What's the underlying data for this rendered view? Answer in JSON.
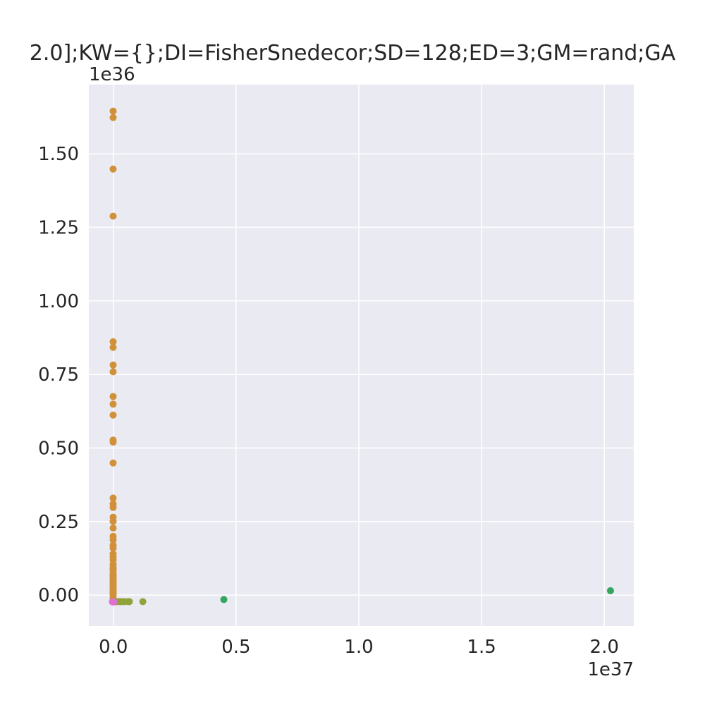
{
  "chart_data": {
    "type": "scatter",
    "title": "2.0];KW={};DI=FisherSnedecor;SD=128;ED=3;GM=rand;GA",
    "xlabel": "",
    "ylabel": "",
    "x_offset_label": "1e37",
    "y_offset_label": "1e36",
    "x_scale": 1e+37,
    "y_scale": 1e+36,
    "xlim": [
      -0.1,
      2.12
    ],
    "ylim": [
      -0.105,
      1.735
    ],
    "x_ticks": [
      0.0,
      0.5,
      1.0,
      1.5,
      2.0
    ],
    "x_tick_labels": [
      "0.0",
      "0.5",
      "1.0",
      "1.5",
      "2.0"
    ],
    "y_ticks": [
      0.0,
      0.25,
      0.5,
      0.75,
      1.0,
      1.25,
      1.5
    ],
    "y_tick_labels": [
      "0.00",
      "0.25",
      "0.50",
      "0.75",
      "1.00",
      "1.25",
      "1.50"
    ],
    "grid": true,
    "background": "#eaeaf2",
    "grid_color": "#ffffff",
    "series": [
      {
        "color": "#d0913a",
        "x": [
          -0.001,
          -0.001,
          -0.001,
          -0.001,
          -0.001,
          -0.001,
          -0.001,
          -0.001,
          -0.001,
          -0.001,
          -0.001,
          -0.001,
          -0.001,
          -0.001,
          -0.001,
          -0.001,
          -0.001,
          -0.001,
          -0.001,
          -0.001,
          -0.001,
          -0.001,
          -0.001,
          -0.001,
          -0.001,
          -0.001,
          -0.001,
          -0.001,
          -0.001,
          -0.001,
          -0.001,
          -0.001,
          -0.001,
          -0.001,
          -0.001,
          -0.001,
          -0.001,
          -0.001,
          -0.001,
          -0.001,
          -0.001,
          -0.001,
          -0.001,
          -0.001,
          -0.001,
          -0.001,
          -0.001,
          -0.001,
          -0.001,
          -0.001
        ],
        "y": [
          1.645,
          1.623,
          1.448,
          1.288,
          0.861,
          0.842,
          0.782,
          0.759,
          0.675,
          0.649,
          0.612,
          0.527,
          0.52,
          0.449,
          0.33,
          0.31,
          0.298,
          0.265,
          0.251,
          0.228,
          0.2,
          0.188,
          0.17,
          0.16,
          0.14,
          0.13,
          0.12,
          0.095,
          0.085,
          0.07,
          0.06,
          0.05,
          0.04,
          0.03,
          0.02,
          0.01,
          0.0,
          -0.01,
          -0.015,
          -0.02,
          0.005,
          0.015,
          0.025,
          0.035,
          0.045,
          0.055,
          0.065,
          0.075,
          0.09,
          0.105
        ]
      },
      {
        "color": "#8fa33a",
        "x": [
          0.002,
          0.005,
          0.01,
          0.015,
          0.025,
          0.03,
          0.04,
          0.045,
          0.06,
          0.065,
          0.12
        ],
        "y": [
          -0.022,
          -0.022,
          -0.022,
          -0.022,
          -0.022,
          -0.022,
          -0.022,
          -0.022,
          -0.022,
          -0.022,
          -0.022
        ]
      },
      {
        "color": "#33a65c",
        "x": [
          0.45,
          2.025
        ],
        "y": [
          -0.015,
          0.015
        ]
      },
      {
        "color": "#e06fd0",
        "x": [
          -0.004,
          -0.002,
          0.0,
          0.002
        ],
        "y": [
          -0.023,
          -0.023,
          -0.023,
          -0.023
        ]
      }
    ]
  }
}
